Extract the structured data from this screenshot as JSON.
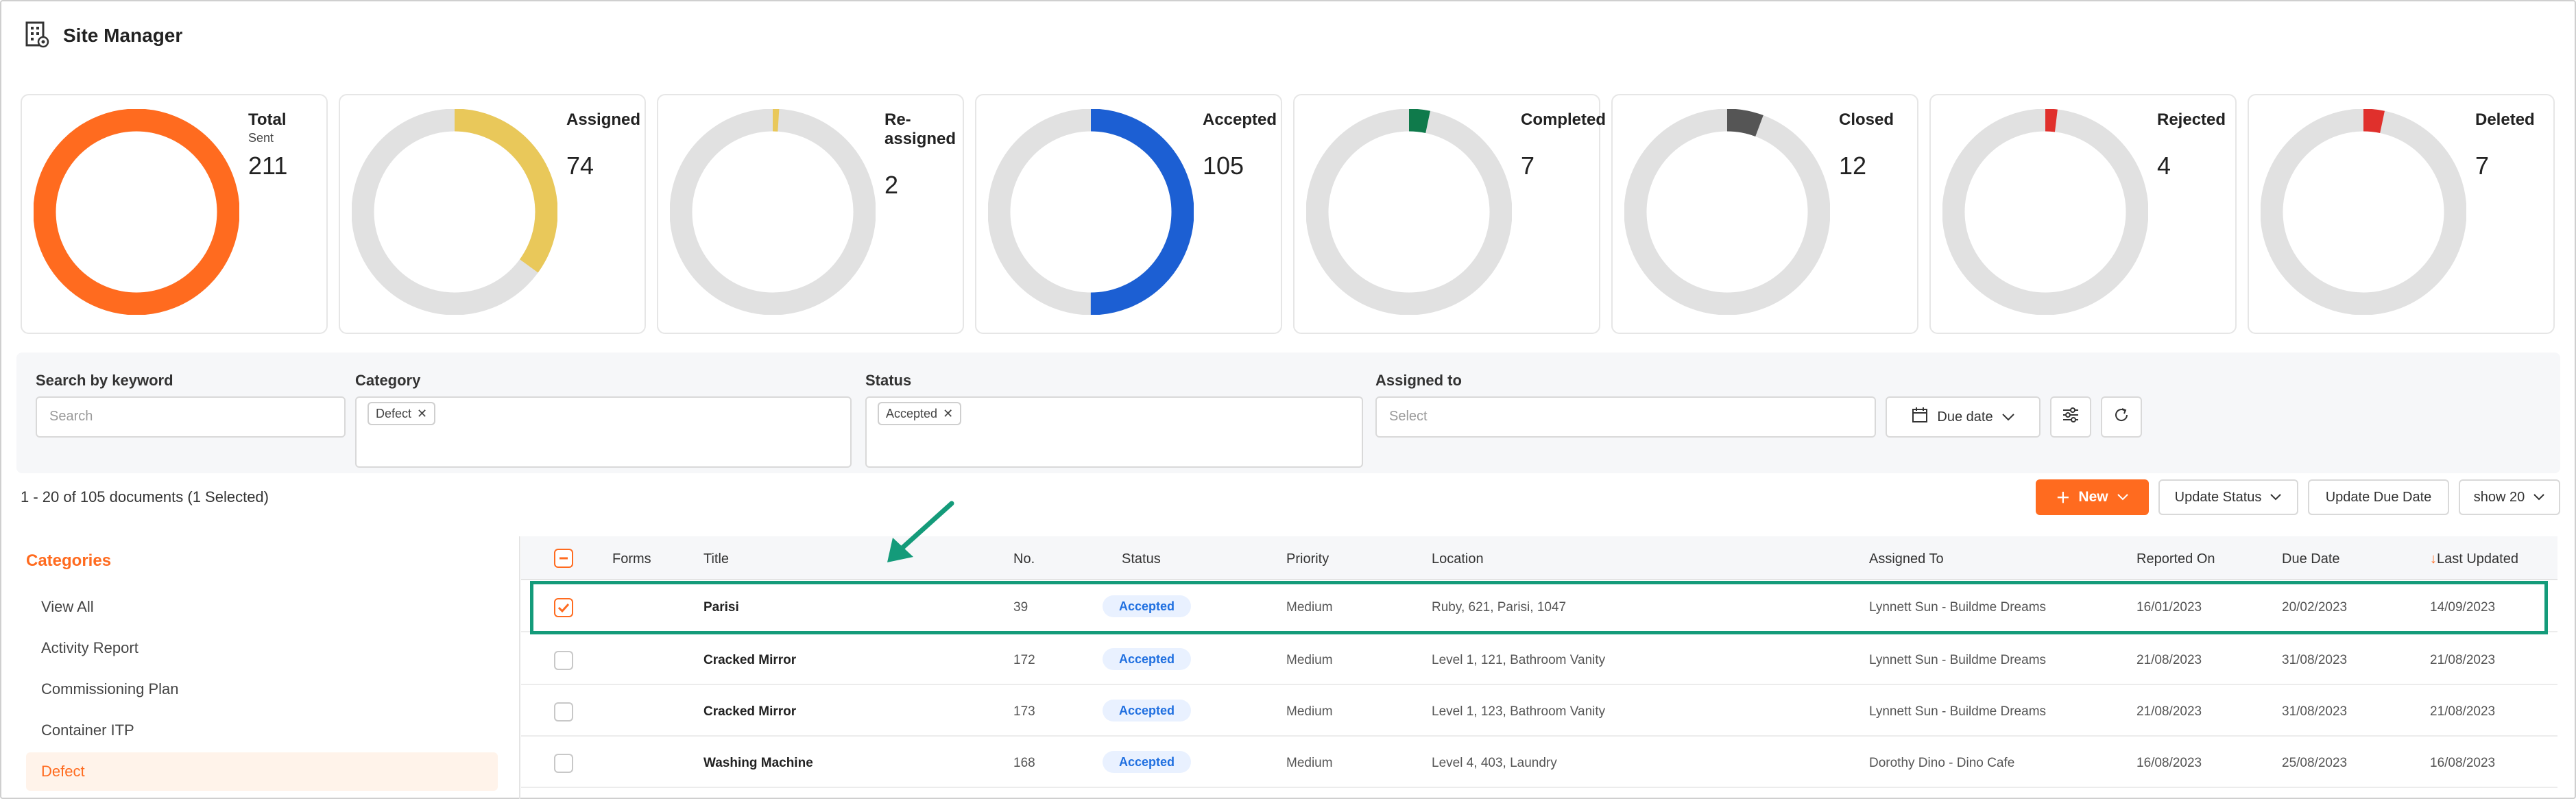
{
  "app": {
    "title": "Site Manager"
  },
  "colors": {
    "accent": "#ff6b1f",
    "ring_bg": "#e1e1e1",
    "highlight": "#149b7a",
    "status_text": "#1f6fe0"
  },
  "stats": [
    {
      "label": "Total",
      "sublabel": "Sent",
      "value": "211",
      "fraction": 1.0,
      "color": "#ff6b1f"
    },
    {
      "label": "Assigned",
      "value": "74",
      "fraction": 0.35,
      "color": "#e9c85a"
    },
    {
      "label": "Re-assigned",
      "value": "2",
      "fraction": 0.01,
      "color": "#e9c85a"
    },
    {
      "label": "Accepted",
      "value": "105",
      "fraction": 0.5,
      "color": "#1c5fd3"
    },
    {
      "label": "Completed",
      "value": "7",
      "fraction": 0.033,
      "color": "#0f7a4b"
    },
    {
      "label": "Closed",
      "value": "12",
      "fraction": 0.057,
      "color": "#555555"
    },
    {
      "label": "Rejected",
      "value": "4",
      "fraction": 0.019,
      "color": "#e0302c"
    },
    {
      "label": "Deleted",
      "value": "7",
      "fraction": 0.033,
      "color": "#e0302c"
    }
  ],
  "filters": {
    "keyword": {
      "label": "Search by keyword",
      "placeholder": "Search"
    },
    "category": {
      "label": "Category",
      "chip": "Defect"
    },
    "status": {
      "label": "Status",
      "chip": "Accepted"
    },
    "assigned": {
      "label": "Assigned to",
      "placeholder": "Select"
    },
    "due_date_label": "Due date"
  },
  "toolbar": {
    "count_text": "1 - 20 of 105 documents (1 Selected)",
    "new_label": "New",
    "update_status_label": "Update Status",
    "update_due_label": "Update Due Date",
    "show_label": "show 20"
  },
  "sidebar": {
    "title": "Categories",
    "items": [
      {
        "label": "View All"
      },
      {
        "label": "Activity Report"
      },
      {
        "label": "Commissioning Plan"
      },
      {
        "label": "Container ITP"
      },
      {
        "label": "Defect",
        "active": true
      }
    ]
  },
  "table": {
    "headers": {
      "forms": "Forms",
      "title": "Title",
      "no": "No.",
      "status": "Status",
      "priority": "Priority",
      "location": "Location",
      "assigned_to": "Assigned To",
      "reported_on": "Reported On",
      "due_date": "Due Date",
      "last_updated": "Last Updated",
      "sort_arrow": "↓"
    },
    "rows": [
      {
        "checked": true,
        "title": "Parisi",
        "no": "39",
        "status": "Accepted",
        "priority": "Medium",
        "location": "Ruby, 621, Parisi, 1047",
        "assigned_to": "Lynnett Sun - Buildme Dreams",
        "reported_on": "16/01/2023",
        "due_date": "20/02/2023",
        "last_updated": "14/09/2023"
      },
      {
        "checked": false,
        "title": "Cracked Mirror",
        "no": "172",
        "status": "Accepted",
        "priority": "Medium",
        "location": "Level 1, 121, Bathroom Vanity",
        "assigned_to": "Lynnett Sun - Buildme Dreams",
        "reported_on": "21/08/2023",
        "due_date": "31/08/2023",
        "last_updated": "21/08/2023"
      },
      {
        "checked": false,
        "title": "Cracked Mirror",
        "no": "173",
        "status": "Accepted",
        "priority": "Medium",
        "location": "Level 1, 123, Bathroom Vanity",
        "assigned_to": "Lynnett Sun - Buildme Dreams",
        "reported_on": "21/08/2023",
        "due_date": "31/08/2023",
        "last_updated": "21/08/2023"
      },
      {
        "checked": false,
        "title": "Washing Machine",
        "no": "168",
        "status": "Accepted",
        "priority": "Medium",
        "location": "Level 4, 403, Laundry",
        "assigned_to": "Dorothy Dino - Dino Cafe",
        "reported_on": "16/08/2023",
        "due_date": "25/08/2023",
        "last_updated": "16/08/2023"
      }
    ]
  }
}
